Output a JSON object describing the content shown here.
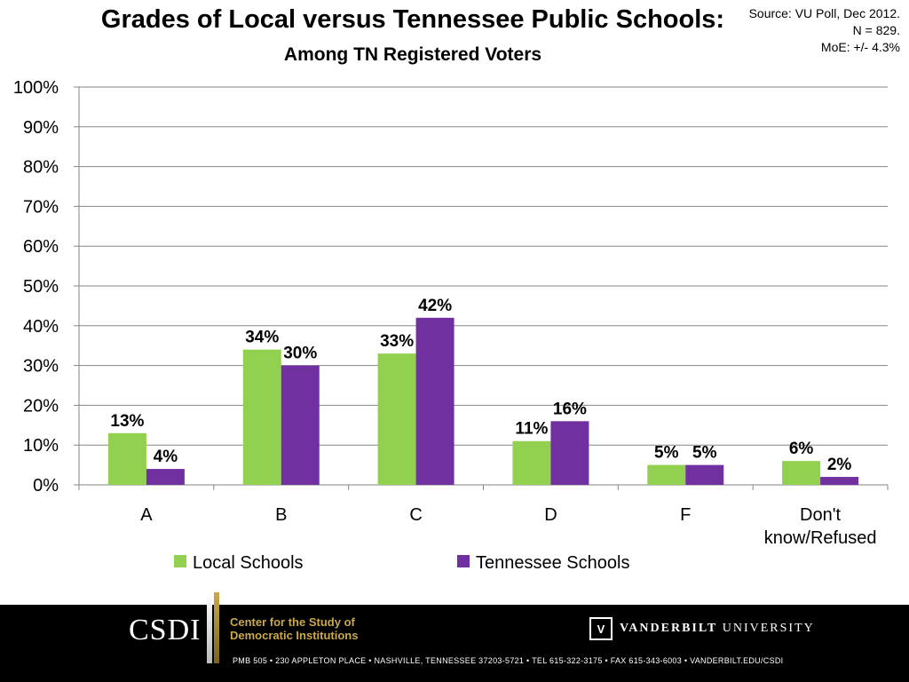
{
  "header": {
    "title": "Grades of Local versus Tennessee Public Schools:",
    "subtitle": "Among TN Registered Voters",
    "source_lines": [
      "Source: VU Poll, Dec 2012.",
      "N = 829.",
      "MoE: +/- 4.3%"
    ]
  },
  "chart_data": {
    "type": "bar",
    "title": "Grades of Local versus Tennessee Public Schools:",
    "subtitle": "Among TN Registered Voters",
    "categories": [
      "A",
      "B",
      "C",
      "D",
      "F",
      "Don't know/Refused"
    ],
    "category_lines": [
      [
        "A"
      ],
      [
        "B"
      ],
      [
        "C"
      ],
      [
        "D"
      ],
      [
        "F"
      ],
      [
        "Don't",
        "know/Refused"
      ]
    ],
    "series": [
      {
        "name": "Local Schools",
        "color": "#92d050",
        "values": [
          13,
          34,
          33,
          11,
          5,
          6
        ],
        "labels": [
          "13%",
          "34%",
          "33%",
          "11%",
          "5%",
          "6%"
        ]
      },
      {
        "name": "Tennessee Schools",
        "color": "#7030a0",
        "values": [
          4,
          30,
          42,
          16,
          5,
          2
        ],
        "labels": [
          "4%",
          "30%",
          "42%",
          "16%",
          "5%",
          "2%"
        ]
      }
    ],
    "ylim": [
      0,
      100
    ],
    "yticks": [
      0,
      10,
      20,
      30,
      40,
      50,
      60,
      70,
      80,
      90,
      100
    ],
    "ytick_labels": [
      "0%",
      "10%",
      "20%",
      "30%",
      "40%",
      "50%",
      "60%",
      "70%",
      "80%",
      "90%",
      "100%"
    ],
    "grid": true,
    "legend": "bottom"
  },
  "footer": {
    "logo": "CSDI",
    "center_name_lines": [
      "Center for the Study of",
      "Democratic Institutions"
    ],
    "university_bold": "VANDERBILT",
    "university_rest": " UNIVERSITY",
    "university_mark": "V",
    "address": "PMB 505 • 230 APPLETON PLACE • NASHVILLE, TENNESSEE 37203-5721 • TEL 615-322-3175 • FAX 615-343-6003 • VANDERBILT.EDU/CSDI"
  }
}
